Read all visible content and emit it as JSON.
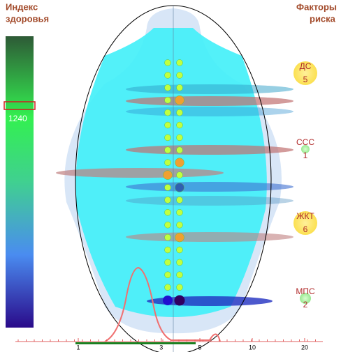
{
  "health_index": {
    "title_lines": [
      "Индекс",
      "здоровья"
    ],
    "value": "1240"
  },
  "risk_factors": {
    "title_lines": [
      "Факторы",
      "риска"
    ],
    "items": [
      {
        "label": "ДС",
        "value": 5
      },
      {
        "label": "ССС",
        "value": 1
      },
      {
        "label": "ЖКТ",
        "value": 6
      },
      {
        "label": "МПС",
        "value": 2
      }
    ]
  },
  "scale": {
    "ticks": [
      1,
      3,
      5,
      10,
      20
    ]
  }
}
